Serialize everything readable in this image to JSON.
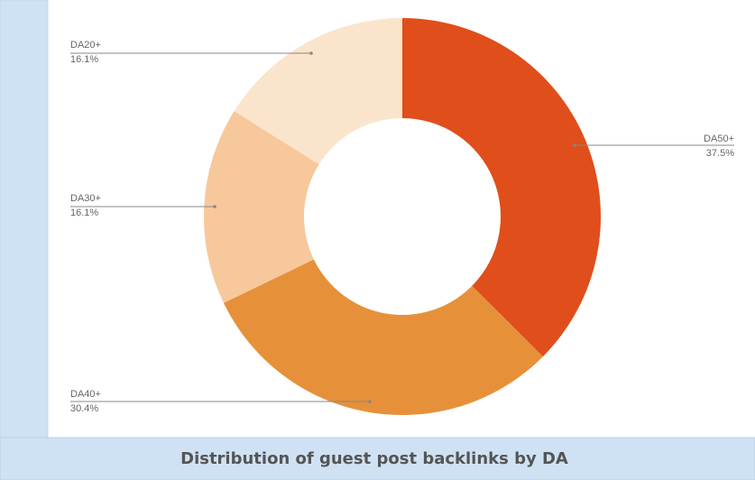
{
  "chart_data": {
    "type": "pie",
    "title": "Distribution of guest post backlinks by DA",
    "categories": [
      "DA50+",
      "DA40+",
      "DA30+",
      "DA20+"
    ],
    "values": [
      37.5,
      30.4,
      16.1,
      16.1
    ],
    "value_labels": [
      "37.5%",
      "30.4%",
      "16.1%",
      "16.1%"
    ],
    "colors": [
      "#e04e1b",
      "#e6913a",
      "#f7c89b",
      "#fae5cc"
    ],
    "donut": true
  }
}
